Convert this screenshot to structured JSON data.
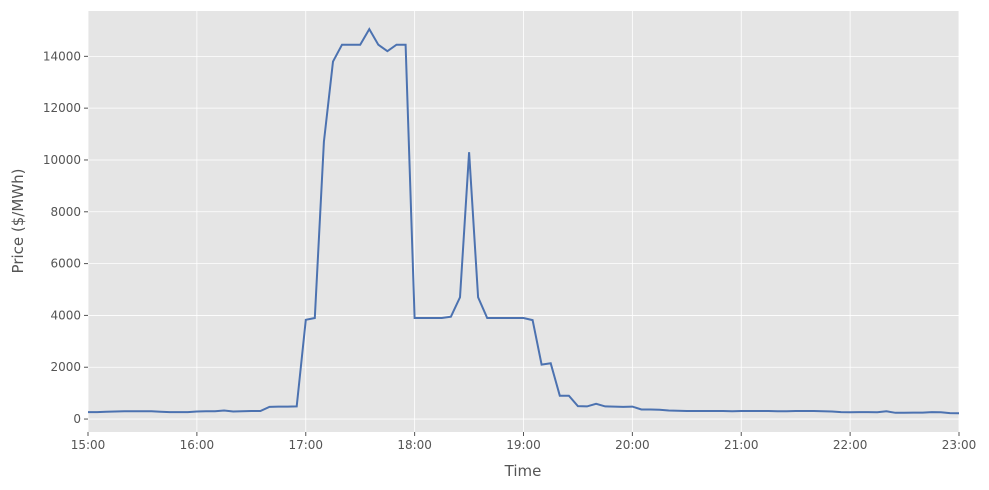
{
  "chart_data": {
    "type": "line",
    "title": "",
    "xlabel": "Time",
    "ylabel": "Price ($/MWh)",
    "x_start": "15:00",
    "x_interval_minutes": 5,
    "xlim": [
      "15:00",
      "23:00"
    ],
    "ylim": [
      -500,
      15750
    ],
    "xticks": [
      "15:00",
      "16:00",
      "17:00",
      "18:00",
      "19:00",
      "20:00",
      "21:00",
      "22:00",
      "23:00"
    ],
    "yticks": [
      0,
      2000,
      4000,
      6000,
      8000,
      10000,
      12000,
      14000
    ],
    "grid": true,
    "background": "#e5e5e5",
    "line_color": "#4c72b0",
    "series": [
      {
        "values": [
          270,
          270,
          280,
          290,
          300,
          300,
          300,
          300,
          280,
          270,
          270,
          270,
          290,
          300,
          300,
          330,
          290,
          300,
          310,
          310,
          470,
          480,
          480,
          490,
          3830,
          3900,
          10700,
          13800,
          14450,
          14450,
          14450,
          15050,
          14450,
          14200,
          14450,
          14450,
          3900,
          3900,
          3900,
          3900,
          3950,
          4700,
          10300,
          4700,
          3900,
          3900,
          3900,
          3900,
          3900,
          3820,
          2100,
          2150,
          900,
          900,
          500,
          490,
          590,
          490,
          480,
          470,
          480,
          370,
          370,
          360,
          330,
          320,
          310,
          310,
          310,
          310,
          310,
          300,
          310,
          310,
          310,
          310,
          300,
          300,
          310,
          310,
          310,
          300,
          290,
          270,
          260,
          270,
          270,
          260,
          300,
          240,
          240,
          250,
          250,
          270,
          260,
          230,
          220
        ]
      }
    ]
  }
}
